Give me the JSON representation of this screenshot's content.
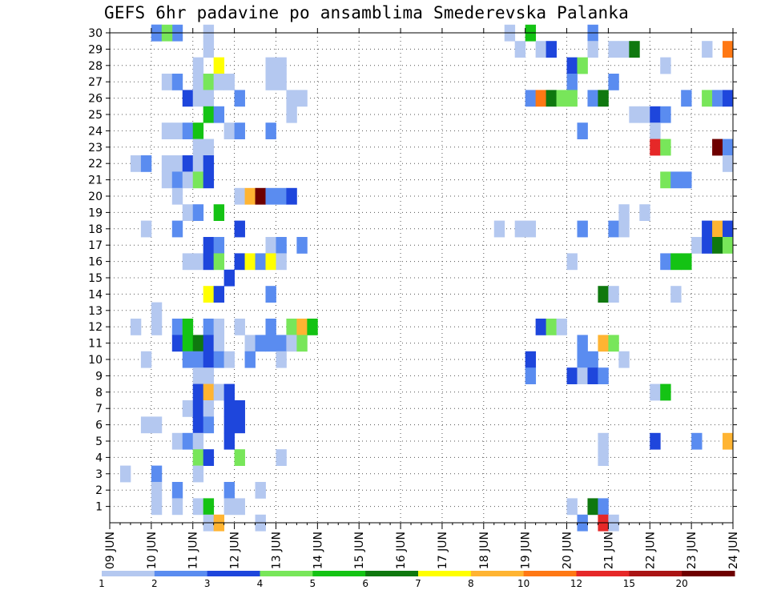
{
  "chart_data": {
    "type": "heatmap",
    "title": "GEFS 6hr padavine po ansamblima Smederevska Palanka",
    "x_tick_labels": [
      "09 JUN",
      "10 JUN",
      "11 JUN",
      "12 JUN",
      "13 JUN",
      "14 JUN",
      "15 JUN",
      "16 JUN",
      "17 JUN",
      "18 JUN",
      "19 JUN",
      "20 JUN",
      "21 JUN",
      "22 JUN",
      "23 JUN",
      "24 JUN"
    ],
    "x_steps_per_day": 4,
    "y_tick_labels": [
      "1",
      "2",
      "3",
      "4",
      "5",
      "6",
      "7",
      "8",
      "9",
      "10",
      "11",
      "12",
      "13",
      "14",
      "15",
      "16",
      "17",
      "18",
      "19",
      "20",
      "21",
      "22",
      "23",
      "24",
      "25",
      "26",
      "27",
      "28",
      "29",
      "30"
    ],
    "y_range": [
      0,
      30
    ],
    "grid": "dotted",
    "legend": {
      "placement": "bottom",
      "thresholds": [
        "1",
        "2",
        "3",
        "4",
        "5",
        "6",
        "7",
        "8",
        "10",
        "12",
        "15",
        "20"
      ],
      "colors": [
        "#b4c8f0",
        "#5a8cf0",
        "#1e46dc",
        "#78e65a",
        "#14c314",
        "#0f780f",
        "#ffff00",
        "#ffb432",
        "#ff7814",
        "#e62828",
        "#aa1414",
        "#6e0000"
      ]
    },
    "cells": [
      [
        30,
        4,
        2
      ],
      [
        30,
        6,
        2
      ],
      [
        30,
        4,
        2
      ],
      [
        30,
        5,
        4
      ],
      [
        30,
        9,
        1
      ],
      [
        30,
        38,
        1
      ],
      [
        30,
        40,
        5
      ],
      [
        30,
        46,
        2
      ],
      [
        29,
        9,
        1
      ],
      [
        29,
        39,
        1
      ],
      [
        29,
        41,
        1
      ],
      [
        29,
        42,
        3
      ],
      [
        29,
        46,
        1
      ],
      [
        29,
        48,
        1
      ],
      [
        29,
        49,
        1
      ],
      [
        29,
        50,
        6
      ],
      [
        29,
        57,
        1
      ],
      [
        29,
        59,
        9
      ],
      [
        28,
        8,
        1
      ],
      [
        28,
        10,
        7
      ],
      [
        28,
        15,
        1
      ],
      [
        28,
        16,
        1
      ],
      [
        28,
        44,
        3
      ],
      [
        28,
        45,
        4
      ],
      [
        28,
        53,
        1
      ],
      [
        27,
        5,
        1
      ],
      [
        27,
        6,
        2
      ],
      [
        27,
        8,
        1
      ],
      [
        27,
        9,
        4
      ],
      [
        27,
        10,
        1
      ],
      [
        27,
        11,
        1
      ],
      [
        27,
        15,
        1
      ],
      [
        27,
        16,
        1
      ],
      [
        27,
        44,
        2
      ],
      [
        27,
        48,
        2
      ],
      [
        26,
        7,
        3
      ],
      [
        26,
        8,
        1
      ],
      [
        26,
        9,
        1
      ],
      [
        26,
        12,
        2
      ],
      [
        26,
        17,
        1
      ],
      [
        26,
        18,
        1
      ],
      [
        26,
        40,
        2
      ],
      [
        26,
        41,
        9
      ],
      [
        26,
        42,
        6
      ],
      [
        26,
        43,
        4
      ],
      [
        26,
        44,
        4
      ],
      [
        26,
        46,
        2
      ],
      [
        26,
        47,
        6
      ],
      [
        26,
        55,
        2
      ],
      [
        26,
        57,
        4
      ],
      [
        26,
        58,
        2
      ],
      [
        26,
        59,
        3
      ],
      [
        25,
        9,
        5
      ],
      [
        25,
        10,
        2
      ],
      [
        25,
        17,
        1
      ],
      [
        25,
        50,
        1
      ],
      [
        25,
        51,
        1
      ],
      [
        25,
        52,
        3
      ],
      [
        25,
        53,
        2
      ],
      [
        24,
        5,
        1
      ],
      [
        24,
        6,
        1
      ],
      [
        24,
        7,
        2
      ],
      [
        24,
        8,
        5
      ],
      [
        24,
        11,
        1
      ],
      [
        24,
        12,
        2
      ],
      [
        24,
        15,
        2
      ],
      [
        24,
        45,
        2
      ],
      [
        24,
        52,
        1
      ],
      [
        23,
        8,
        1
      ],
      [
        23,
        9,
        1
      ],
      [
        23,
        52,
        10
      ],
      [
        23,
        53,
        4
      ],
      [
        23,
        58,
        12
      ],
      [
        23,
        59,
        2
      ],
      [
        22,
        2,
        1
      ],
      [
        22,
        3,
        2
      ],
      [
        22,
        5,
        1
      ],
      [
        22,
        6,
        1
      ],
      [
        22,
        7,
        3
      ],
      [
        22,
        8,
        1
      ],
      [
        22,
        9,
        3
      ],
      [
        22,
        59,
        1
      ],
      [
        21,
        5,
        1
      ],
      [
        21,
        6,
        2
      ],
      [
        21,
        7,
        1
      ],
      [
        21,
        8,
        4
      ],
      [
        21,
        9,
        3
      ],
      [
        21,
        53,
        4
      ],
      [
        21,
        54,
        2
      ],
      [
        21,
        55,
        2
      ],
      [
        20,
        6,
        1
      ],
      [
        20,
        12,
        1
      ],
      [
        20,
        13,
        8
      ],
      [
        20,
        14,
        12
      ],
      [
        20,
        15,
        2
      ],
      [
        20,
        16,
        2
      ],
      [
        20,
        17,
        3
      ],
      [
        19,
        7,
        1
      ],
      [
        19,
        8,
        2
      ],
      [
        19,
        10,
        5
      ],
      [
        19,
        49,
        1
      ],
      [
        19,
        51,
        1
      ],
      [
        18,
        3,
        1
      ],
      [
        18,
        6,
        2
      ],
      [
        18,
        12,
        3
      ],
      [
        18,
        37,
        1
      ],
      [
        18,
        39,
        1
      ],
      [
        18,
        40,
        1
      ],
      [
        18,
        45,
        2
      ],
      [
        18,
        48,
        2
      ],
      [
        18,
        49,
        1
      ],
      [
        18,
        57,
        3
      ],
      [
        18,
        58,
        8
      ],
      [
        18,
        59,
        3
      ],
      [
        17,
        9,
        3
      ],
      [
        17,
        10,
        2
      ],
      [
        17,
        15,
        1
      ],
      [
        17,
        16,
        2
      ],
      [
        17,
        18,
        2
      ],
      [
        17,
        56,
        1
      ],
      [
        17,
        57,
        3
      ],
      [
        17,
        58,
        6
      ],
      [
        17,
        59,
        4
      ],
      [
        16,
        7,
        1
      ],
      [
        16,
        8,
        1
      ],
      [
        16,
        9,
        3
      ],
      [
        16,
        10,
        4
      ],
      [
        16,
        12,
        3
      ],
      [
        16,
        13,
        7
      ],
      [
        16,
        14,
        2
      ],
      [
        16,
        15,
        7
      ],
      [
        16,
        16,
        1
      ],
      [
        16,
        44,
        1
      ],
      [
        16,
        53,
        2
      ],
      [
        16,
        54,
        5
      ],
      [
        16,
        55,
        5
      ],
      [
        15,
        11,
        3
      ],
      [
        14,
        9,
        7
      ],
      [
        14,
        10,
        3
      ],
      [
        14,
        15,
        2
      ],
      [
        14,
        47,
        6
      ],
      [
        14,
        48,
        1
      ],
      [
        14,
        54,
        1
      ],
      [
        13,
        4,
        1
      ],
      [
        12,
        2,
        1
      ],
      [
        12,
        4,
        1
      ],
      [
        12,
        6,
        2
      ],
      [
        12,
        7,
        5
      ],
      [
        12,
        9,
        2
      ],
      [
        12,
        10,
        1
      ],
      [
        12,
        12,
        1
      ],
      [
        12,
        15,
        2
      ],
      [
        12,
        17,
        4
      ],
      [
        12,
        18,
        8
      ],
      [
        12,
        19,
        5
      ],
      [
        12,
        41,
        3
      ],
      [
        12,
        42,
        4
      ],
      [
        12,
        43,
        1
      ],
      [
        11,
        6,
        3
      ],
      [
        11,
        7,
        5
      ],
      [
        11,
        8,
        6
      ],
      [
        11,
        9,
        3
      ],
      [
        11,
        10,
        1
      ],
      [
        11,
        13,
        1
      ],
      [
        11,
        14,
        2
      ],
      [
        11,
        15,
        2
      ],
      [
        11,
        16,
        2
      ],
      [
        11,
        17,
        1
      ],
      [
        11,
        18,
        4
      ],
      [
        11,
        45,
        2
      ],
      [
        11,
        47,
        8
      ],
      [
        11,
        48,
        4
      ],
      [
        10,
        3,
        1
      ],
      [
        10,
        7,
        2
      ],
      [
        10,
        8,
        2
      ],
      [
        10,
        9,
        3
      ],
      [
        10,
        10,
        2
      ],
      [
        10,
        11,
        1
      ],
      [
        10,
        13,
        2
      ],
      [
        10,
        16,
        1
      ],
      [
        10,
        40,
        3
      ],
      [
        10,
        45,
        2
      ],
      [
        10,
        46,
        2
      ],
      [
        10,
        49,
        1
      ],
      [
        9,
        8,
        1
      ],
      [
        9,
        9,
        1
      ],
      [
        9,
        40,
        2
      ],
      [
        9,
        44,
        3
      ],
      [
        9,
        45,
        1
      ],
      [
        9,
        46,
        3
      ],
      [
        9,
        47,
        2
      ],
      [
        8,
        8,
        3
      ],
      [
        8,
        9,
        8
      ],
      [
        8,
        10,
        1
      ],
      [
        8,
        11,
        3
      ],
      [
        8,
        52,
        1
      ],
      [
        8,
        53,
        5
      ],
      [
        7,
        7,
        1
      ],
      [
        7,
        8,
        3
      ],
      [
        7,
        9,
        1
      ],
      [
        7,
        11,
        3
      ],
      [
        7,
        12,
        3
      ],
      [
        6,
        3,
        1
      ],
      [
        6,
        4,
        1
      ],
      [
        6,
        8,
        3
      ],
      [
        6,
        9,
        2
      ],
      [
        6,
        11,
        3
      ],
      [
        6,
        12,
        3
      ],
      [
        5,
        6,
        1
      ],
      [
        5,
        7,
        2
      ],
      [
        5,
        8,
        1
      ],
      [
        5,
        11,
        3
      ],
      [
        5,
        47,
        1
      ],
      [
        5,
        52,
        3
      ],
      [
        5,
        56,
        2
      ],
      [
        5,
        59,
        8
      ],
      [
        4,
        8,
        4
      ],
      [
        4,
        9,
        3
      ],
      [
        4,
        12,
        4
      ],
      [
        4,
        16,
        1
      ],
      [
        4,
        47,
        1
      ],
      [
        3,
        1,
        1
      ],
      [
        3,
        4,
        2
      ],
      [
        3,
        8,
        1
      ],
      [
        2,
        4,
        1
      ],
      [
        2,
        6,
        2
      ],
      [
        2,
        11,
        2
      ],
      [
        2,
        14,
        1
      ],
      [
        1,
        4,
        1
      ],
      [
        1,
        6,
        1
      ],
      [
        1,
        8,
        1
      ],
      [
        1,
        9,
        5
      ],
      [
        1,
        11,
        1
      ],
      [
        1,
        12,
        1
      ],
      [
        1,
        44,
        1
      ],
      [
        1,
        46,
        6
      ],
      [
        1,
        47,
        2
      ],
      [
        0,
        9,
        1
      ],
      [
        0,
        10,
        8
      ],
      [
        0,
        14,
        1
      ],
      [
        0,
        45,
        2
      ],
      [
        0,
        47,
        10
      ],
      [
        0,
        48,
        1
      ]
    ]
  }
}
